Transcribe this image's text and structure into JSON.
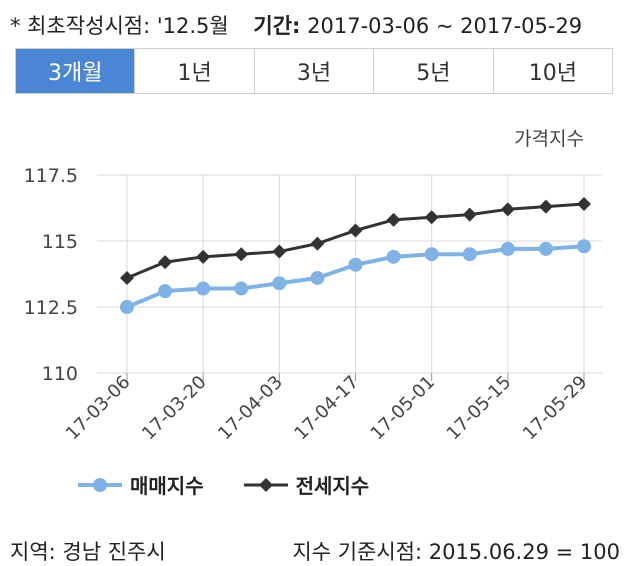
{
  "header": {
    "created_label": "* 최초작성시점:",
    "created_value": "'12.5월",
    "period_label": "기간:",
    "period_value": "2017-03-06 ~ 2017-05-29"
  },
  "tabs": [
    {
      "label": "3개월",
      "active": true
    },
    {
      "label": "1년",
      "active": false
    },
    {
      "label": "3년",
      "active": false
    },
    {
      "label": "5년",
      "active": false
    },
    {
      "label": "10년",
      "active": false
    }
  ],
  "footer": {
    "region": "지역: 경남 진주시",
    "base": "지수 기준시점: 2015.06.29 = 100"
  },
  "colors": {
    "active_tab": "#4a86d4",
    "series1": "#7fb3e8",
    "series2": "#333333",
    "grid": "#d9d9d9"
  },
  "chart_data": {
    "type": "line",
    "unit_label": "가격지수",
    "x": [
      "17-03-06",
      "17-03-13",
      "17-03-20",
      "17-03-27",
      "17-04-03",
      "17-04-10",
      "17-04-17",
      "17-04-24",
      "17-05-01",
      "17-05-08",
      "17-05-15",
      "17-05-22",
      "17-05-29"
    ],
    "xtick_labels": [
      "17-03-06",
      "17-03-20",
      "17-04-03",
      "17-04-17",
      "17-05-01",
      "17-05-15",
      "17-05-29"
    ],
    "yticks": [
      110,
      112.5,
      115,
      117.5
    ],
    "ylim": [
      110,
      117.5
    ],
    "series": [
      {
        "name": "매매지수",
        "marker": "circle",
        "color": "#7fb3e8",
        "values": [
          112.5,
          113.1,
          113.2,
          113.2,
          113.4,
          113.6,
          114.1,
          114.4,
          114.5,
          114.5,
          114.7,
          114.7,
          114.8
        ]
      },
      {
        "name": "전세지수",
        "marker": "diamond",
        "color": "#333333",
        "values": [
          113.6,
          114.2,
          114.4,
          114.5,
          114.6,
          114.9,
          115.4,
          115.8,
          115.9,
          116.0,
          116.2,
          116.3,
          116.4
        ]
      }
    ],
    "grid": true,
    "legend": "bottom-left"
  }
}
